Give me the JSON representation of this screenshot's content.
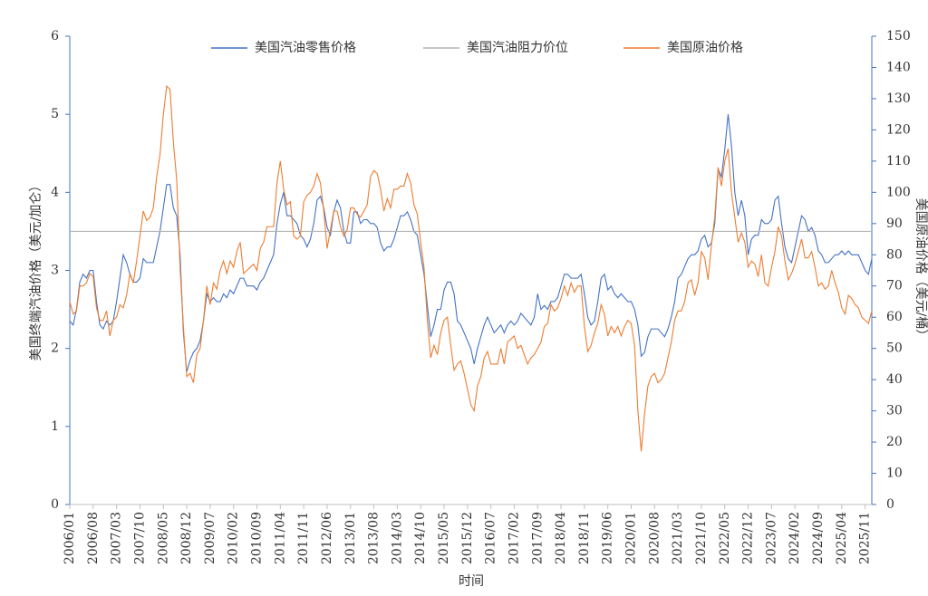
{
  "chart_data": {
    "type": "line",
    "x_label": "时间",
    "y_label": "美国终端汽油价格（美元/加仑）",
    "y2_label": "美国原油价格（美元/桶）",
    "x": [
      "2006/01",
      "2006/02",
      "2006/03",
      "2006/04",
      "2006/05",
      "2006/06",
      "2006/07",
      "2006/08",
      "2006/09",
      "2006/10",
      "2006/11",
      "2006/12",
      "2007/01",
      "2007/02",
      "2007/03",
      "2007/04",
      "2007/05",
      "2007/06",
      "2007/07",
      "2007/08",
      "2007/09",
      "2007/10",
      "2007/11",
      "2007/12",
      "2008/01",
      "2008/02",
      "2008/03",
      "2008/04",
      "2008/05",
      "2008/06",
      "2008/07",
      "2008/08",
      "2008/09",
      "2008/10",
      "2008/11",
      "2008/12",
      "2009/01",
      "2009/02",
      "2009/03",
      "2009/04",
      "2009/05",
      "2009/06",
      "2009/07",
      "2009/08",
      "2009/09",
      "2009/10",
      "2009/11",
      "2009/12",
      "2010/01",
      "2010/02",
      "2010/03",
      "2010/04",
      "2010/05",
      "2010/06",
      "2010/07",
      "2010/08",
      "2010/09",
      "2010/10",
      "2010/11",
      "2010/12",
      "2011/01",
      "2011/02",
      "2011/03",
      "2011/04",
      "2011/05",
      "2011/06",
      "2011/07",
      "2011/08",
      "2011/09",
      "2011/10",
      "2011/11",
      "2011/12",
      "2012/01",
      "2012/02",
      "2012/03",
      "2012/04",
      "2012/05",
      "2012/06",
      "2012/07",
      "2012/08",
      "2012/09",
      "2012/10",
      "2012/11",
      "2012/12",
      "2013/01",
      "2013/02",
      "2013/03",
      "2013/04",
      "2013/05",
      "2013/06",
      "2013/07",
      "2013/08",
      "2013/09",
      "2013/10",
      "2013/11",
      "2013/12",
      "2014/01",
      "2014/02",
      "2014/03",
      "2014/04",
      "2014/05",
      "2014/06",
      "2014/07",
      "2014/08",
      "2014/09",
      "2014/10",
      "2014/11",
      "2014/12",
      "2015/01",
      "2015/02",
      "2015/03",
      "2015/04",
      "2015/05",
      "2015/06",
      "2015/07",
      "2015/08",
      "2015/09",
      "2015/10",
      "2015/11",
      "2015/12",
      "2016/01",
      "2016/02",
      "2016/03",
      "2016/04",
      "2016/05",
      "2016/06",
      "2016/07",
      "2016/08",
      "2016/09",
      "2016/10",
      "2016/11",
      "2016/12",
      "2017/01",
      "2017/02",
      "2017/03",
      "2017/04",
      "2017/05",
      "2017/06",
      "2017/07",
      "2017/08",
      "2017/09",
      "2017/10",
      "2017/11",
      "2017/12",
      "2018/01",
      "2018/02",
      "2018/03",
      "2018/04",
      "2018/05",
      "2018/06",
      "2018/07",
      "2018/08",
      "2018/09",
      "2018/10",
      "2018/11",
      "2018/12",
      "2019/01",
      "2019/02",
      "2019/03",
      "2019/04",
      "2019/05",
      "2019/06",
      "2019/07",
      "2019/08",
      "2019/09",
      "2019/10",
      "2019/11",
      "2019/12",
      "2020/01",
      "2020/02",
      "2020/03",
      "2020/04",
      "2020/05",
      "2020/06",
      "2020/07",
      "2020/08",
      "2020/09",
      "2020/10",
      "2020/11",
      "2020/12",
      "2021/01",
      "2021/02",
      "2021/03",
      "2021/04",
      "2021/05",
      "2021/06",
      "2021/07",
      "2021/08",
      "2021/09",
      "2021/10",
      "2021/11",
      "2021/12",
      "2022/01",
      "2022/02",
      "2022/03",
      "2022/04",
      "2022/05",
      "2022/06",
      "2022/07",
      "2022/08",
      "2022/09",
      "2022/10",
      "2022/11",
      "2022/12",
      "2023/01",
      "2023/02",
      "2023/03",
      "2023/04",
      "2023/05",
      "2023/06",
      "2023/07",
      "2023/08",
      "2023/09",
      "2023/10",
      "2023/11",
      "2023/12",
      "2024/01",
      "2024/02",
      "2024/03",
      "2024/04",
      "2024/05",
      "2024/06",
      "2024/07",
      "2024/08",
      "2024/09",
      "2024/10",
      "2024/11",
      "2024/12",
      "2025/01",
      "2025/02",
      "2025/03",
      "2025/04",
      "2025/05",
      "2025/06",
      "2025/07",
      "2025/08",
      "2025/09",
      "2025/10",
      "2025/11",
      "2025/12",
      "2026/01"
    ],
    "xticks": [
      "2006/01",
      "2006/08",
      "2007/03",
      "2007/10",
      "2008/05",
      "2008/12",
      "2009/07",
      "2010/02",
      "2010/09",
      "2011/04",
      "2011/11",
      "2012/06",
      "2013/01",
      "2013/08",
      "2014/03",
      "2014/10",
      "2015/05",
      "2015/12",
      "2016/07",
      "2017/02",
      "2017/09",
      "2018/04",
      "2018/11",
      "2019/06",
      "2020/01",
      "2020/08",
      "2021/03",
      "2021/10",
      "2022/05",
      "2022/12",
      "2023/07",
      "2024/02",
      "2024/09",
      "2025/04",
      "2025/11"
    ],
    "ylim": [
      0,
      6
    ],
    "yticks": [
      0,
      1,
      2,
      3,
      4,
      5,
      6
    ],
    "y2lim": [
      0,
      150
    ],
    "y2ticks": [
      0,
      10,
      20,
      30,
      40,
      50,
      60,
      70,
      80,
      90,
      100,
      110,
      120,
      130,
      140,
      150
    ],
    "series": [
      {
        "name": "美国汽油零售价格",
        "color": "#4472c4",
        "axis": "y",
        "values": [
          2.35,
          2.3,
          2.5,
          2.85,
          2.95,
          2.9,
          3.0,
          3.0,
          2.6,
          2.3,
          2.25,
          2.35,
          2.3,
          2.35,
          2.6,
          2.9,
          3.2,
          3.1,
          2.95,
          2.85,
          2.85,
          2.9,
          3.15,
          3.1,
          3.1,
          3.1,
          3.3,
          3.5,
          3.8,
          4.1,
          4.1,
          3.8,
          3.7,
          3.2,
          2.2,
          1.7,
          1.85,
          1.95,
          2.0,
          2.1,
          2.35,
          2.7,
          2.6,
          2.65,
          2.6,
          2.6,
          2.7,
          2.65,
          2.75,
          2.7,
          2.8,
          2.9,
          2.9,
          2.8,
          2.8,
          2.8,
          2.75,
          2.85,
          2.9,
          3.0,
          3.1,
          3.2,
          3.6,
          3.85,
          4.0,
          3.7,
          3.7,
          3.65,
          3.6,
          3.45,
          3.4,
          3.3,
          3.4,
          3.6,
          3.9,
          3.95,
          3.8,
          3.55,
          3.45,
          3.75,
          3.9,
          3.8,
          3.5,
          3.35,
          3.35,
          3.75,
          3.75,
          3.6,
          3.65,
          3.65,
          3.6,
          3.6,
          3.55,
          3.35,
          3.25,
          3.3,
          3.3,
          3.4,
          3.55,
          3.7,
          3.7,
          3.75,
          3.65,
          3.5,
          3.45,
          3.2,
          2.95,
          2.55,
          2.15,
          2.3,
          2.5,
          2.5,
          2.75,
          2.85,
          2.85,
          2.7,
          2.35,
          2.3,
          2.2,
          2.1,
          2.0,
          1.8,
          2.0,
          2.15,
          2.3,
          2.4,
          2.3,
          2.2,
          2.25,
          2.3,
          2.2,
          2.3,
          2.35,
          2.3,
          2.35,
          2.45,
          2.4,
          2.35,
          2.3,
          2.4,
          2.7,
          2.5,
          2.55,
          2.5,
          2.6,
          2.6,
          2.65,
          2.8,
          2.95,
          2.95,
          2.9,
          2.9,
          2.9,
          2.95,
          2.7,
          2.4,
          2.3,
          2.35,
          2.6,
          2.9,
          2.95,
          2.75,
          2.8,
          2.7,
          2.65,
          2.7,
          2.65,
          2.6,
          2.6,
          2.5,
          2.3,
          1.9,
          1.95,
          2.15,
          2.25,
          2.25,
          2.25,
          2.2,
          2.15,
          2.25,
          2.4,
          2.6,
          2.9,
          2.95,
          3.05,
          3.15,
          3.2,
          3.2,
          3.25,
          3.4,
          3.45,
          3.3,
          3.35,
          3.6,
          4.3,
          4.2,
          4.55,
          5.0,
          4.6,
          4.0,
          3.7,
          3.9,
          3.7,
          3.2,
          3.4,
          3.45,
          3.45,
          3.65,
          3.6,
          3.6,
          3.65,
          3.9,
          3.95,
          3.6,
          3.3,
          3.15,
          3.1,
          3.3,
          3.5,
          3.7,
          3.65,
          3.5,
          3.55,
          3.45,
          3.25,
          3.2,
          3.1,
          3.1,
          3.15,
          3.2,
          3.2,
          3.25,
          3.2,
          3.25,
          3.2,
          3.2,
          3.2,
          3.1,
          3.0,
          2.95,
          3.15
        ]
      },
      {
        "name": "美国汽油阻力价位",
        "color": "#b4b4b4",
        "axis": "y",
        "hline": 3.5
      },
      {
        "name": "美国原油价格",
        "color": "#ed7d31",
        "axis": "y2",
        "values": [
          65,
          61,
          62,
          70,
          70,
          71,
          74,
          73,
          63,
          59,
          59,
          62,
          54,
          59,
          60,
          64,
          63,
          67,
          74,
          71,
          78,
          86,
          94,
          91,
          92,
          95,
          105,
          112,
          125,
          134,
          133,
          116,
          104,
          76,
          57,
          41,
          42,
          39,
          48,
          50,
          59,
          70,
          64,
          71,
          69,
          75,
          78,
          74,
          78,
          76,
          81,
          84,
          74,
          75,
          76,
          77,
          75,
          82,
          84,
          89,
          89,
          89,
          103,
          110,
          101,
          96,
          97,
          86,
          85,
          86,
          97,
          99,
          100,
          102,
          106,
          103,
          94,
          82,
          88,
          94,
          94,
          89,
          86,
          88,
          95,
          95,
          93,
          92,
          94,
          96,
          105,
          107,
          106,
          101,
          94,
          98,
          95,
          101,
          101,
          102,
          102,
          106,
          103,
          96,
          93,
          84,
          76,
          59,
          47,
          51,
          48,
          55,
          59,
          60,
          51,
          43,
          45,
          46,
          42,
          37,
          32,
          30,
          38,
          41,
          47,
          49,
          45,
          45,
          45,
          50,
          45,
          52,
          53,
          54,
          50,
          51,
          48,
          45,
          47,
          48,
          50,
          52,
          57,
          58,
          64,
          62,
          63,
          66,
          70,
          67,
          71,
          68,
          70,
          70,
          57,
          49,
          51,
          55,
          58,
          64,
          61,
          54,
          57,
          55,
          57,
          54,
          57,
          59,
          58,
          51,
          30,
          17,
          29,
          38,
          41,
          42,
          39,
          40,
          42,
          47,
          52,
          59,
          62,
          62,
          65,
          71,
          72,
          67,
          71,
          81,
          79,
          72,
          83,
          92,
          108,
          102,
          110,
          114,
          100,
          92,
          84,
          87,
          84,
          76,
          78,
          77,
          73,
          80,
          71,
          70,
          76,
          81,
          89,
          86,
          78,
          72,
          74,
          77,
          81,
          85,
          79,
          79,
          81,
          76,
          70,
          71,
          69,
          70,
          75,
          71,
          68,
          63,
          61,
          67,
          66,
          64,
          63,
          60,
          59,
          58,
          62
        ]
      }
    ]
  }
}
